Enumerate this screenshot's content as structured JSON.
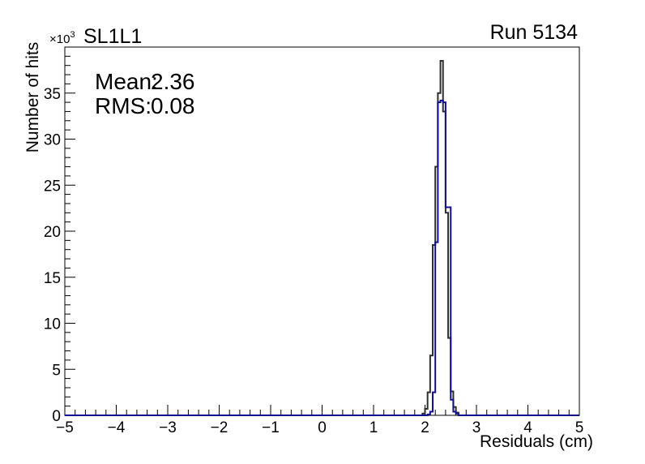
{
  "page": {
    "background": "#ffffff"
  },
  "header": {
    "title": "SL1L1",
    "run_label": "Run 5134"
  },
  "stats": {
    "mean_label": "Mean:",
    "mean_value": "2.36",
    "rms_label": "RMS:",
    "rms_value": "0.08"
  },
  "axes": {
    "x": {
      "title": "Residuals (cm)",
      "major_values": [
        -5,
        -4,
        -3,
        -2,
        -1,
        0,
        1,
        2,
        3,
        4,
        5
      ],
      "major_labels": [
        "−5",
        "−4",
        "−3",
        "−2",
        "−1",
        "0",
        "1",
        "2",
        "3",
        "4",
        "5"
      ],
      "minor_step": 0.2
    },
    "y": {
      "title": "Number of hits",
      "scale_label_base": "×10",
      "scale_label_exponent": "3",
      "major_values": [
        0,
        5,
        10,
        15,
        20,
        25,
        30,
        35,
        40
      ],
      "major_labels": [
        "0",
        "5",
        "10",
        "15",
        "20",
        "25",
        "30",
        "35",
        ""
      ],
      "minor_step": 1
    }
  },
  "chart_data": {
    "type": "line",
    "subtype": "step-histogram-outline",
    "title": "SL1L1",
    "xlabel": "Residuals (cm)",
    "ylabel": "Number of hits",
    "y_unit_multiplier": "×10³",
    "xlim": [
      -5,
      5
    ],
    "ylim": [
      0,
      40
    ],
    "grid": false,
    "legend": false,
    "annotations": [
      "Mean: 2.36",
      "RMS: 0.08"
    ],
    "series": [
      {
        "name": "histogram-black",
        "color": "#2e2e2e",
        "bin_edges": [
          1.95,
          2.0,
          2.05,
          2.1,
          2.15,
          2.2,
          2.25,
          2.3,
          2.35,
          2.4,
          2.45,
          2.5,
          2.55,
          2.6,
          2.65
        ],
        "counts_thousands": [
          0.2,
          0.7,
          2.5,
          6.5,
          18.5,
          27.0,
          35.0,
          38.5,
          33.0,
          22.0,
          8.4,
          2.6,
          0.9,
          0.3
        ]
      },
      {
        "name": "histogram-blue",
        "color": "#10108e",
        "bin_edges": [
          2.05,
          2.1,
          2.15,
          2.2,
          2.25,
          2.3,
          2.35,
          2.4,
          2.45,
          2.5,
          2.55,
          2.6,
          2.65
        ],
        "counts_thousands": [
          0.1,
          0.4,
          2.5,
          18.8,
          34.0,
          34.2,
          34.0,
          22.6,
          22.6,
          1.7,
          0.4,
          0.2
        ]
      }
    ]
  }
}
